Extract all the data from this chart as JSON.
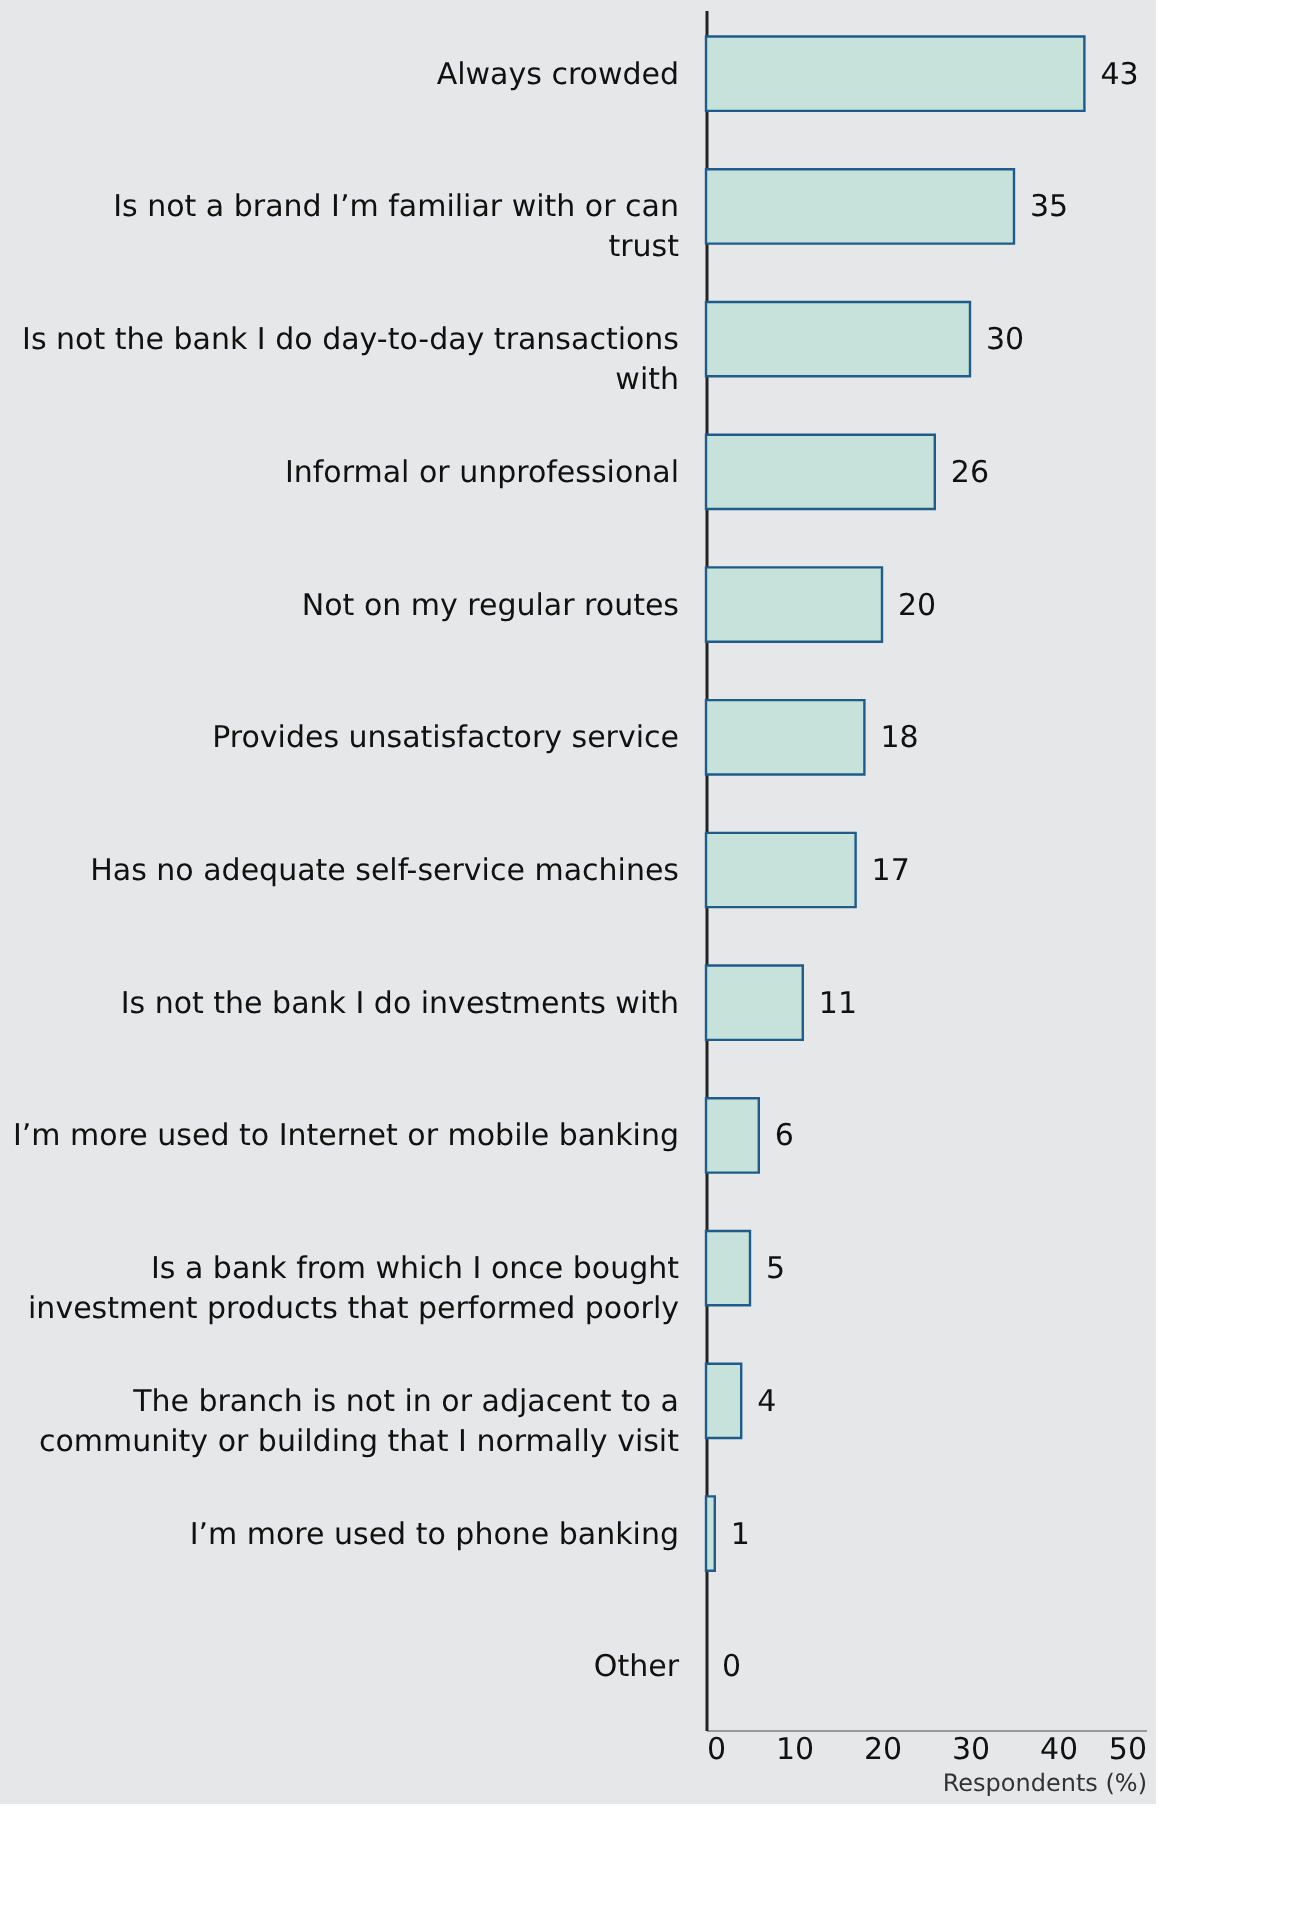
{
  "chart_data": {
    "type": "bar",
    "orientation": "horizontal",
    "categories": [
      "Always crowded",
      "Is not a brand I’m familiar with or can trust",
      "Is not the bank I do day-to-day transactions with",
      "Informal or unprofessional",
      "Not on my regular routes",
      "Provides unsatisfactory service",
      "Has no adequate self-service machines",
      "Is not the bank I do investments with",
      "I’m more used to Internet or mobile banking",
      "Is a bank from which I once bought investment products that performed poorly",
      "The branch is not in or adjacent to a community or building that I normally visit",
      "I’m more used to phone banking",
      "Other"
    ],
    "values": [
      43,
      35,
      30,
      26,
      20,
      18,
      17,
      11,
      6,
      5,
      4,
      1,
      0
    ],
    "color": "#c6e2da",
    "xlim": [
      0,
      50
    ],
    "xticks": [
      0,
      10,
      20,
      30,
      40,
      50
    ],
    "xlabel": "Respondents (%)",
    "data_labels": true,
    "grid": false
  }
}
